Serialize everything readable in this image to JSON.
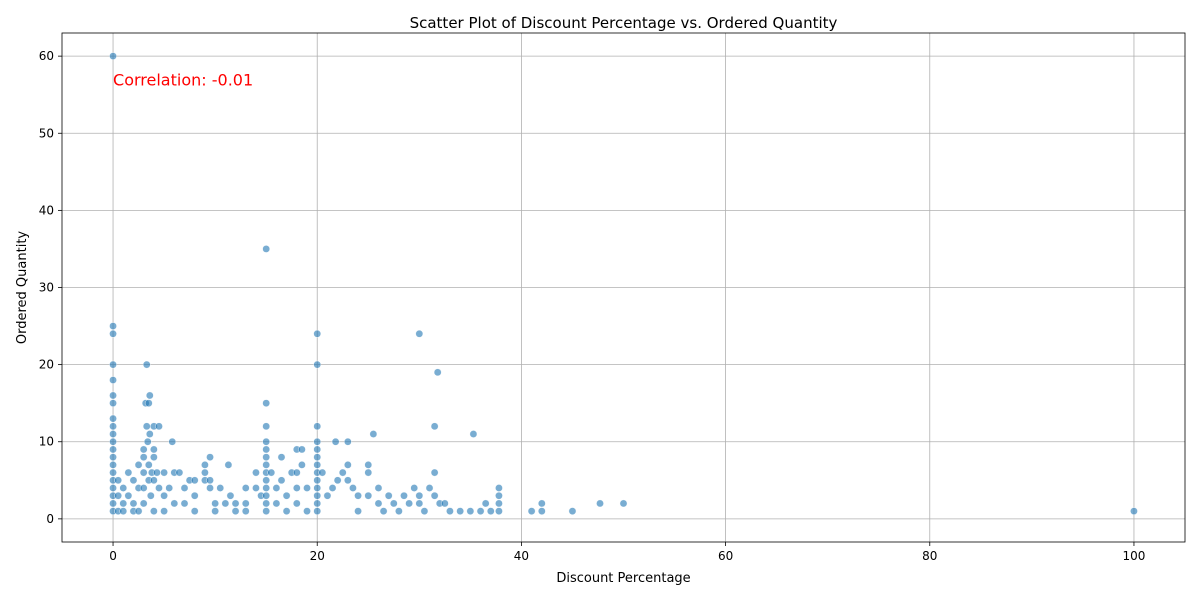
{
  "chart_data": {
    "type": "scatter",
    "title": "Scatter Plot of Discount Percentage vs. Ordered Quantity",
    "xlabel": "Discount Percentage",
    "ylabel": "Ordered Quantity",
    "xlim": [
      -5,
      105
    ],
    "ylim": [
      -3,
      63
    ],
    "xticks": [
      0,
      20,
      40,
      60,
      80,
      100
    ],
    "yticks": [
      0,
      10,
      20,
      30,
      40,
      50,
      60
    ],
    "grid": true,
    "marker_color": "#1f77b4",
    "annotation": {
      "text": "Correlation: -0.01",
      "color": "#ff0000",
      "x": 0,
      "y": 57
    },
    "points": [
      [
        0,
        60
      ],
      [
        0,
        25
      ],
      [
        0,
        24
      ],
      [
        0,
        20
      ],
      [
        0,
        18
      ],
      [
        0,
        16
      ],
      [
        0,
        15
      ],
      [
        0,
        13
      ],
      [
        0,
        12
      ],
      [
        0,
        11
      ],
      [
        0,
        10
      ],
      [
        0,
        9
      ],
      [
        0,
        8
      ],
      [
        0,
        7
      ],
      [
        0,
        6
      ],
      [
        0,
        5
      ],
      [
        0,
        4
      ],
      [
        0,
        3
      ],
      [
        0,
        2
      ],
      [
        0,
        1
      ],
      [
        0.5,
        5
      ],
      [
        0.5,
        3
      ],
      [
        0.5,
        1
      ],
      [
        1,
        4
      ],
      [
        1,
        2
      ],
      [
        1,
        1
      ],
      [
        1.5,
        3
      ],
      [
        1.5,
        6
      ],
      [
        2,
        5
      ],
      [
        2,
        2
      ],
      [
        2,
        1
      ],
      [
        2.5,
        7
      ],
      [
        2.5,
        4
      ],
      [
        2.5,
        1
      ],
      [
        3,
        6
      ],
      [
        3,
        4
      ],
      [
        3,
        2
      ],
      [
        3,
        9
      ],
      [
        3,
        8
      ],
      [
        3.2,
        15
      ],
      [
        3.3,
        20
      ],
      [
        3.3,
        12
      ],
      [
        3.4,
        10
      ],
      [
        3.5,
        15
      ],
      [
        3.5,
        7
      ],
      [
        3.5,
        5
      ],
      [
        3.6,
        16
      ],
      [
        3.6,
        11
      ],
      [
        3.7,
        3
      ],
      [
        3.8,
        6
      ],
      [
        4,
        12
      ],
      [
        4,
        9
      ],
      [
        4,
        8
      ],
      [
        4,
        5
      ],
      [
        4,
        1
      ],
      [
        4.3,
        6
      ],
      [
        4.5,
        12
      ],
      [
        4.5,
        4
      ],
      [
        5,
        6
      ],
      [
        5,
        3
      ],
      [
        5,
        1
      ],
      [
        5.5,
        4
      ],
      [
        5.8,
        10
      ],
      [
        6,
        6
      ],
      [
        6,
        2
      ],
      [
        6.5,
        6
      ],
      [
        7,
        4
      ],
      [
        7,
        2
      ],
      [
        7.5,
        5
      ],
      [
        8,
        5
      ],
      [
        8,
        3
      ],
      [
        8,
        1
      ],
      [
        9,
        7
      ],
      [
        9,
        6
      ],
      [
        9,
        5
      ],
      [
        9.5,
        5
      ],
      [
        9.5,
        8
      ],
      [
        9.5,
        4
      ],
      [
        10,
        2
      ],
      [
        10,
        1
      ],
      [
        10.5,
        4
      ],
      [
        11,
        2
      ],
      [
        11.3,
        7
      ],
      [
        11.5,
        3
      ],
      [
        12,
        1
      ],
      [
        12,
        2
      ],
      [
        13,
        4
      ],
      [
        13,
        2
      ],
      [
        13,
        1
      ],
      [
        14,
        4
      ],
      [
        14,
        6
      ],
      [
        14.5,
        3
      ],
      [
        15,
        35
      ],
      [
        15,
        15
      ],
      [
        15,
        12
      ],
      [
        15,
        10
      ],
      [
        15,
        9
      ],
      [
        15,
        8
      ],
      [
        15,
        7
      ],
      [
        15,
        6
      ],
      [
        15,
        5
      ],
      [
        15,
        4
      ],
      [
        15,
        3
      ],
      [
        15,
        2
      ],
      [
        15,
        1
      ],
      [
        15.5,
        6
      ],
      [
        16,
        4
      ],
      [
        16,
        2
      ],
      [
        16.5,
        8
      ],
      [
        16.5,
        5
      ],
      [
        17,
        3
      ],
      [
        17,
        1
      ],
      [
        17.5,
        6
      ],
      [
        18,
        9
      ],
      [
        18,
        6
      ],
      [
        18,
        4
      ],
      [
        18,
        2
      ],
      [
        18.5,
        9
      ],
      [
        18.5,
        7
      ],
      [
        19,
        4
      ],
      [
        19,
        1
      ],
      [
        20,
        24
      ],
      [
        20,
        20
      ],
      [
        20,
        12
      ],
      [
        20,
        10
      ],
      [
        20,
        9
      ],
      [
        20,
        8
      ],
      [
        20,
        7
      ],
      [
        20,
        6
      ],
      [
        20,
        5
      ],
      [
        20,
        4
      ],
      [
        20,
        3
      ],
      [
        20,
        2
      ],
      [
        20,
        1
      ],
      [
        20.5,
        6
      ],
      [
        21,
        3
      ],
      [
        21.5,
        4
      ],
      [
        21.8,
        10
      ],
      [
        22,
        5
      ],
      [
        22.5,
        6
      ],
      [
        23,
        10
      ],
      [
        23,
        7
      ],
      [
        23,
        5
      ],
      [
        23.5,
        4
      ],
      [
        24,
        3
      ],
      [
        24,
        1
      ],
      [
        25,
        7
      ],
      [
        25,
        6
      ],
      [
        25,
        3
      ],
      [
        25.5,
        11
      ],
      [
        26,
        4
      ],
      [
        26,
        2
      ],
      [
        26.5,
        1
      ],
      [
        27,
        3
      ],
      [
        27.5,
        2
      ],
      [
        28,
        1
      ],
      [
        28.5,
        3
      ],
      [
        29,
        2
      ],
      [
        29.5,
        4
      ],
      [
        30,
        24
      ],
      [
        30,
        3
      ],
      [
        30,
        2
      ],
      [
        30.5,
        1
      ],
      [
        31,
        4
      ],
      [
        31.5,
        12
      ],
      [
        31.5,
        6
      ],
      [
        31.5,
        3
      ],
      [
        31.8,
        19
      ],
      [
        32,
        2
      ],
      [
        32.5,
        2
      ],
      [
        33,
        1
      ],
      [
        34,
        1
      ],
      [
        35,
        1
      ],
      [
        35.3,
        11
      ],
      [
        36,
        1
      ],
      [
        36.5,
        2
      ],
      [
        37,
        1
      ],
      [
        37.8,
        4
      ],
      [
        37.8,
        3
      ],
      [
        37.8,
        2
      ],
      [
        37.8,
        1
      ],
      [
        41,
        1
      ],
      [
        42,
        2
      ],
      [
        42,
        1
      ],
      [
        45,
        1
      ],
      [
        47.7,
        2
      ],
      [
        50,
        2
      ],
      [
        100,
        1
      ]
    ]
  }
}
